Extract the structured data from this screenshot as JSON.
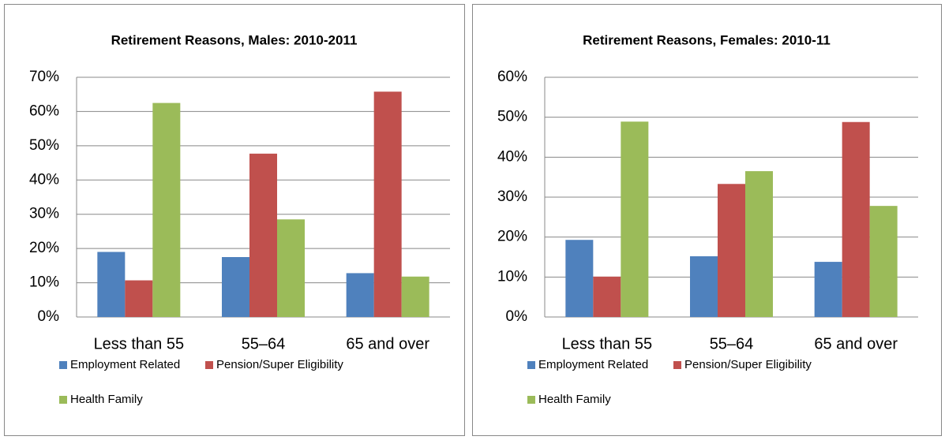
{
  "chart_data": [
    {
      "type": "bar",
      "title": "Retirement Reasons, Males: 2010-2011",
      "categories": [
        "Less than 55",
        "55–64",
        "65 and over"
      ],
      "series": [
        {
          "name": "Employment Related",
          "color": "#4f81bd",
          "values": [
            19,
            17.5,
            12.8
          ]
        },
        {
          "name": "Pension/Super Eligibility",
          "color": "#c0504d",
          "values": [
            10.7,
            47.7,
            65.8
          ]
        },
        {
          "name": "Health Family",
          "color": "#9bbb59",
          "values": [
            62.5,
            28.5,
            11.8
          ]
        }
      ],
      "ylim": [
        0,
        70
      ],
      "yticks": [
        {
          "value": 0,
          "label": "0%"
        },
        {
          "value": 10,
          "label": "10%"
        },
        {
          "value": 20,
          "label": "20%"
        },
        {
          "value": 30,
          "label": "30%"
        },
        {
          "value": 40,
          "label": "40%"
        },
        {
          "value": 50,
          "label": "50%"
        },
        {
          "value": 60,
          "label": "60%"
        },
        {
          "value": 70,
          "label": "70%"
        }
      ],
      "grid": true,
      "legend": "bottom"
    },
    {
      "type": "bar",
      "title": "Retirement Reasons, Females: 2010-11",
      "categories": [
        "Less than 55",
        "55–64",
        "65 and over"
      ],
      "series": [
        {
          "name": "Employment Related",
          "color": "#4f81bd",
          "values": [
            19.3,
            15.2,
            13.8
          ]
        },
        {
          "name": "Pension/Super Eligibility",
          "color": "#c0504d",
          "values": [
            10.1,
            33.3,
            48.8
          ]
        },
        {
          "name": "Health Family",
          "color": "#9bbb59",
          "values": [
            48.9,
            36.5,
            27.8
          ]
        }
      ],
      "ylim": [
        0,
        60
      ],
      "yticks": [
        {
          "value": 0,
          "label": "0%"
        },
        {
          "value": 10,
          "label": "10%"
        },
        {
          "value": 20,
          "label": "20%"
        },
        {
          "value": 30,
          "label": "30%"
        },
        {
          "value": 40,
          "label": "40%"
        },
        {
          "value": 50,
          "label": "50%"
        },
        {
          "value": 60,
          "label": "60%"
        }
      ],
      "grid": true,
      "legend": "bottom"
    }
  ]
}
